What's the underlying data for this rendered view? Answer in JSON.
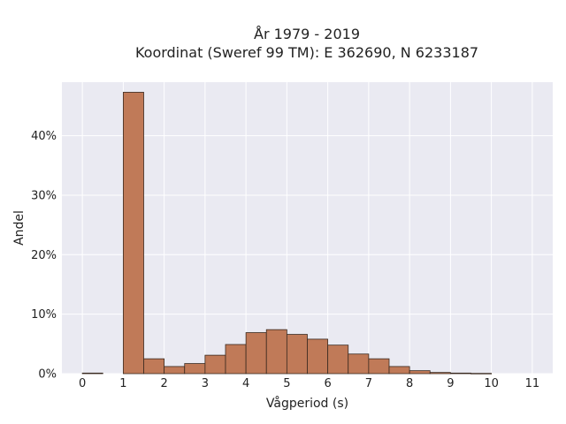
{
  "chart_data": {
    "type": "bar",
    "title_lines": [
      "År 1979 - 2019",
      "Koordinat (Sweref 99 TM): E 362690, N 6233187"
    ],
    "xlabel": "Vågperiod (s)",
    "ylabel": "Andel",
    "xlim": [
      -0.5,
      11.5
    ],
    "ylim": [
      0,
      49
    ],
    "x_ticks": [
      0,
      1,
      2,
      3,
      4,
      5,
      6,
      7,
      8,
      9,
      10,
      11
    ],
    "y_ticks": [
      0,
      10,
      20,
      30,
      40
    ],
    "y_tick_format": "%",
    "bin_width": 0.5,
    "bins": [
      {
        "start": 0.0,
        "value": 0.1
      },
      {
        "start": 0.5,
        "value": 0.0
      },
      {
        "start": 1.0,
        "value": 47.3
      },
      {
        "start": 1.5,
        "value": 2.5
      },
      {
        "start": 2.0,
        "value": 1.2
      },
      {
        "start": 2.5,
        "value": 1.7
      },
      {
        "start": 3.0,
        "value": 3.1
      },
      {
        "start": 3.5,
        "value": 4.9
      },
      {
        "start": 4.0,
        "value": 6.9
      },
      {
        "start": 4.5,
        "value": 7.4
      },
      {
        "start": 5.0,
        "value": 6.6
      },
      {
        "start": 5.5,
        "value": 5.8
      },
      {
        "start": 6.0,
        "value": 4.8
      },
      {
        "start": 6.5,
        "value": 3.3
      },
      {
        "start": 7.0,
        "value": 2.5
      },
      {
        "start": 7.5,
        "value": 1.2
      },
      {
        "start": 8.0,
        "value": 0.5
      },
      {
        "start": 8.5,
        "value": 0.2
      },
      {
        "start": 9.0,
        "value": 0.1
      },
      {
        "start": 9.5,
        "value": 0.05
      }
    ],
    "bar_color": "#c07a58",
    "bar_edge_color": "#3a2a20",
    "plot_bg": "#eaeaf2",
    "grid": true,
    "grid_color": "#ffffff",
    "legend": "none"
  }
}
